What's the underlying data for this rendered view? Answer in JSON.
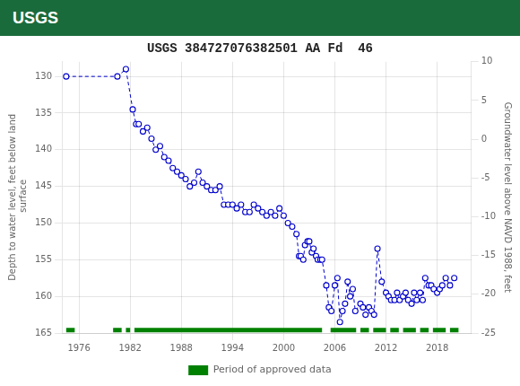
{
  "chart_data": {
    "type": "line",
    "title": "USGS 384727076382501 AA Fd  46",
    "annotations": [
      {
        "text": "USGS",
        "color": "#1a6b3c"
      }
    ],
    "ylabel": "Depth to water level, feet below land\n surface",
    "y2label": "Groundwater level above NAVD 1988, feet",
    "xlim": [
      1974,
      2022
    ],
    "xticks": [
      1976,
      1982,
      1988,
      1994,
      2000,
      2006,
      2012,
      2018
    ],
    "ylim": [
      165,
      128
    ],
    "yticks": [
      130,
      135,
      140,
      145,
      150,
      155,
      160,
      165
    ],
    "y2lim": [
      -25,
      10
    ],
    "y2ticks": [
      10,
      5,
      0,
      -5,
      -10,
      -15,
      -20,
      -25
    ],
    "grid": true,
    "legend": "bottom",
    "series": [
      {
        "type": "line",
        "color": "#0000cc",
        "marker": "circle",
        "line_style": "dashed",
        "x": [
          1974.5,
          1980.5,
          1981.5,
          1982.3,
          1982.7,
          1983.0,
          1983.5,
          1984.0,
          1984.5,
          1985.0,
          1985.5,
          1986.0,
          1986.5,
          1987.0,
          1987.5,
          1988.0,
          1988.5,
          1989.0,
          1989.5,
          1990.0,
          1990.5,
          1991.0,
          1991.5,
          1992.0,
          1992.5,
          1993.0,
          1993.5,
          1994.0,
          1994.5,
          1995.0,
          1995.5,
          1996.0,
          1996.5,
          1997.0,
          1997.5,
          1998.0,
          1998.5,
          1999.0,
          1999.5,
          2000.0,
          2000.5,
          2001.0,
          2001.5,
          2001.8,
          2002.0,
          2002.3,
          2002.5,
          2002.8,
          2003.0,
          2003.3,
          2003.5,
          2003.8,
          2004.0,
          2004.3,
          2004.5,
          2005.0,
          2005.3,
          2005.6,
          2006.0,
          2006.3,
          2006.6,
          2006.9,
          2007.2,
          2007.5,
          2007.8,
          2008.1,
          2008.4,
          2009.0,
          2009.3,
          2009.6,
          2010.0,
          2010.3,
          2010.6,
          2011.0,
          2011.5,
          2012.0,
          2012.3,
          2012.6,
          2013.0,
          2013.3,
          2013.6,
          2014.0,
          2014.3,
          2014.6,
          2015.0,
          2015.3,
          2015.6,
          2016.0,
          2016.3,
          2016.6,
          2017.0,
          2017.3,
          2017.6,
          2018.0,
          2018.3,
          2018.6,
          2019.0,
          2019.5,
          2020.0
        ],
        "values": [
          130.0,
          130.0,
          129.0,
          134.5,
          136.5,
          136.5,
          137.5,
          137.0,
          138.5,
          140.0,
          139.5,
          141.0,
          141.5,
          142.5,
          143.0,
          143.5,
          144.0,
          145.0,
          144.5,
          143.0,
          144.5,
          145.0,
          145.5,
          145.5,
          145.0,
          147.5,
          147.5,
          147.5,
          148.0,
          147.5,
          148.5,
          148.5,
          147.5,
          148.0,
          148.5,
          149.0,
          148.5,
          149.0,
          148.0,
          149.0,
          150.0,
          150.5,
          151.5,
          154.5,
          154.5,
          155.0,
          153.0,
          152.5,
          152.5,
          154.0,
          153.5,
          154.5,
          155.0,
          155.0,
          155.0,
          158.5,
          161.5,
          162.0,
          158.5,
          157.5,
          163.5,
          162.0,
          161.0,
          158.0,
          160.0,
          159.0,
          162.0,
          161.0,
          161.5,
          162.5,
          161.5,
          162.0,
          162.5,
          153.5,
          158.0,
          159.5,
          160.0,
          160.5,
          160.5,
          159.5,
          160.5,
          160.0,
          159.5,
          160.5,
          161.0,
          159.5,
          160.5,
          159.5,
          160.5,
          157.5,
          158.5,
          158.5,
          159.0,
          159.5,
          159.0,
          158.5,
          157.5,
          158.5,
          157.5
        ]
      },
      {
        "name": "Period of approved data",
        "type": "bar",
        "orientation": "horizontal",
        "color": "#008000",
        "y": 164.6,
        "periods": [
          [
            1974.5,
            1975.5
          ],
          [
            1980.0,
            1981.0
          ],
          [
            1981.5,
            1982.0
          ],
          [
            1982.5,
            2004.5
          ],
          [
            2005.5,
            2008.5
          ],
          [
            2009.0,
            2010.0
          ],
          [
            2010.5,
            2012.0
          ],
          [
            2012.5,
            2013.5
          ],
          [
            2014.0,
            2015.5
          ],
          [
            2016.0,
            2017.0
          ],
          [
            2017.5,
            2019.0
          ],
          [
            2019.5,
            2020.5
          ]
        ]
      }
    ]
  }
}
